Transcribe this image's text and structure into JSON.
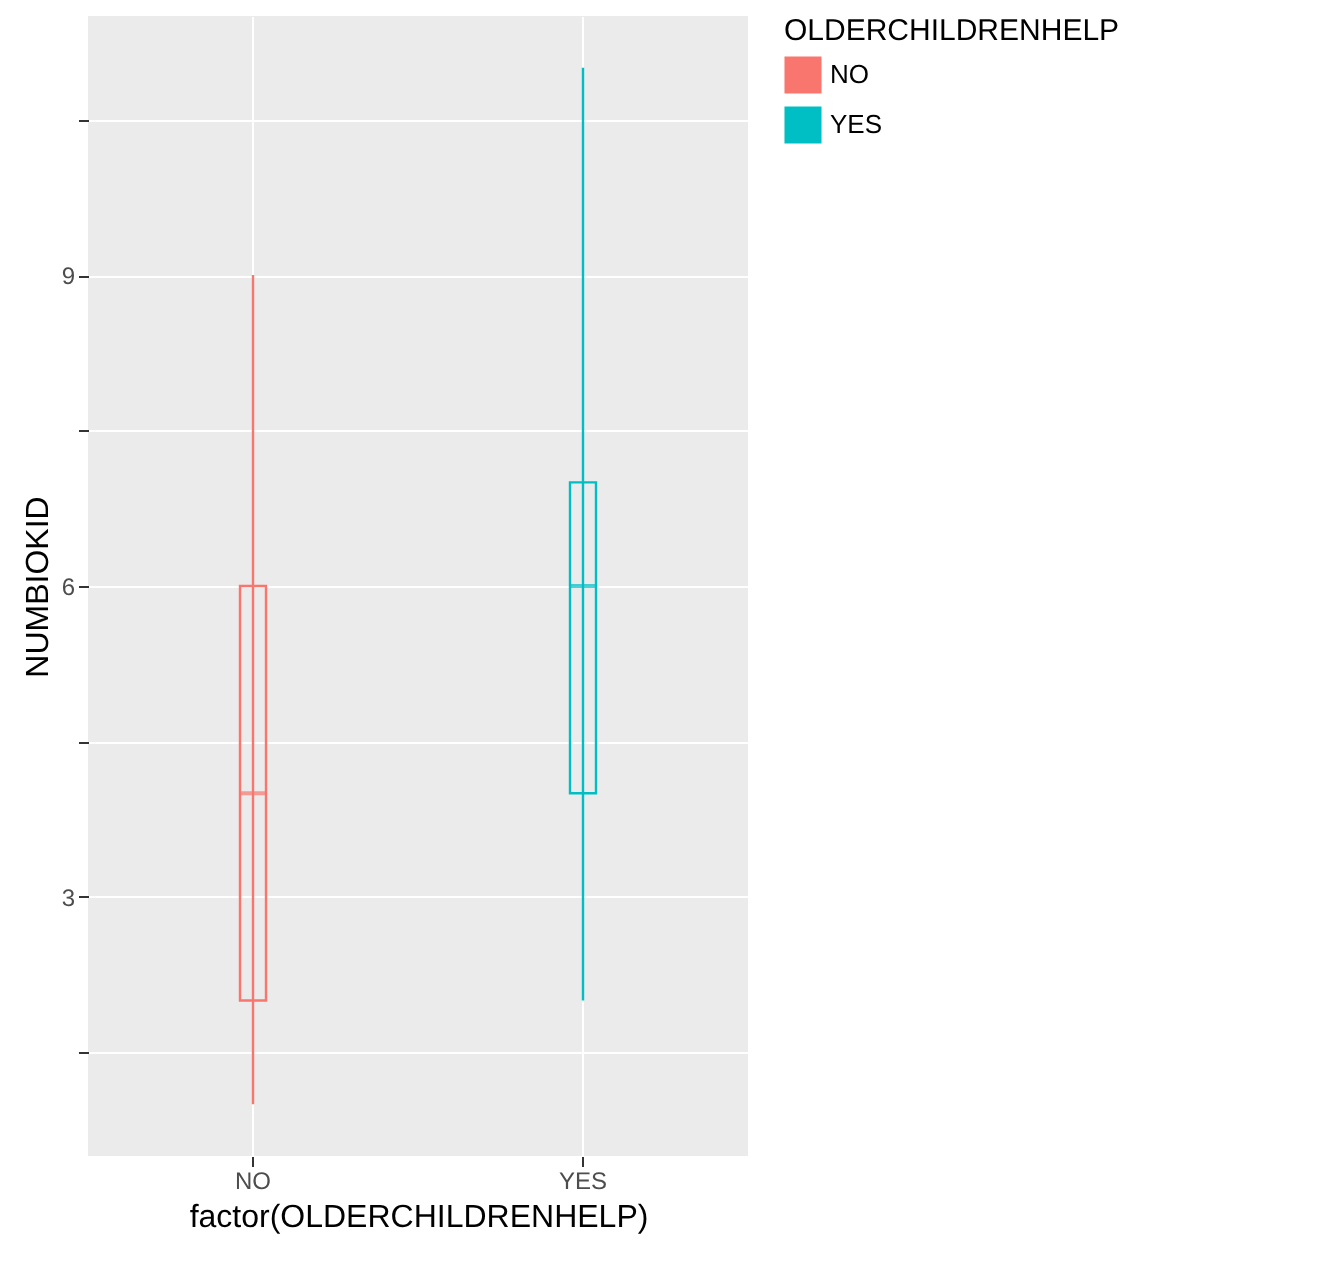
{
  "chart_data": {
    "type": "box",
    "xlabel": "factor(OLDERCHILDRENHELP)",
    "ylabel": "NUMBIOKID",
    "legend_title": "OLDERCHILDRENHELP",
    "legend": "right",
    "grid": true,
    "categories": [
      "NO",
      "YES"
    ],
    "ylim": [
      0.5,
      11.5
    ],
    "yticks": [
      {
        "value": 1.5,
        "label": null
      },
      3,
      {
        "value": 4.5,
        "label": null
      },
      6,
      {
        "value": 7.5,
        "label": null
      },
      9,
      {
        "value": 10.5,
        "label": null
      }
    ],
    "series": [
      {
        "name": "NO",
        "color": "#f8766d",
        "boxes": [
          {
            "low": 1,
            "q1": 2,
            "median": 4,
            "q3": 6,
            "high": 9
          },
          null
        ]
      },
      {
        "name": "YES",
        "color": "#00bfc4",
        "boxes": [
          null,
          {
            "low": 2,
            "q1": 4,
            "median": 6,
            "q3": 7,
            "high": 11
          }
        ]
      }
    ]
  }
}
